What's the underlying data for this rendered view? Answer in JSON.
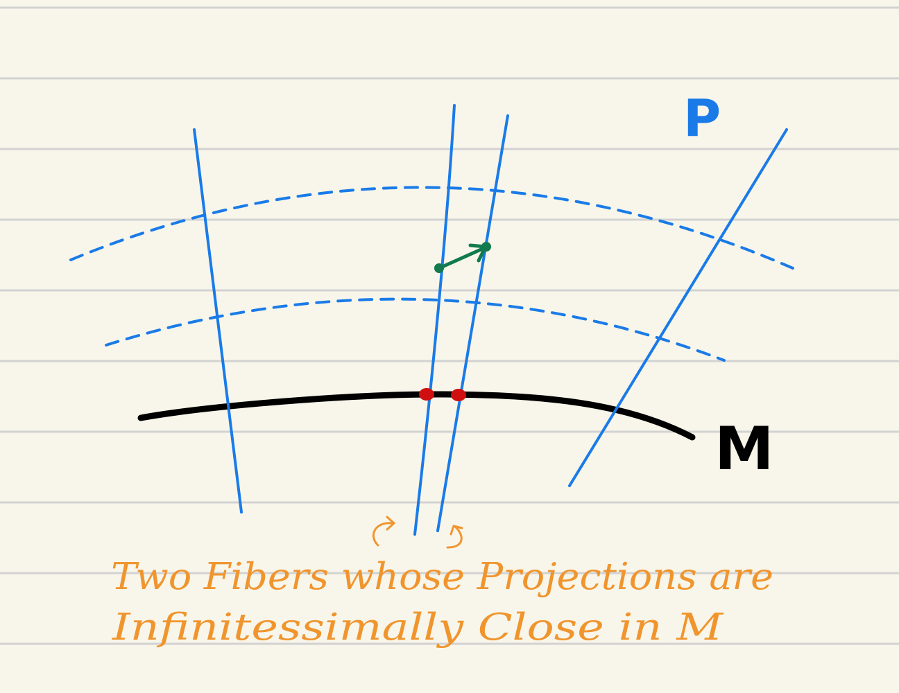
{
  "colors": {
    "paper": "#f8f6ea",
    "ruled_line": "#d2d2d2",
    "fiber_blue": "#1a7be8",
    "base_black": "#000000",
    "point_red": "#d01010",
    "vector_green": "#127a4e",
    "caption_orange": "#f0952e"
  },
  "labels": {
    "bundle": "P",
    "base": "M"
  },
  "caption": {
    "line1": "Two Fibers whose Projections are",
    "line2": "Infinitessimally Close in M"
  }
}
